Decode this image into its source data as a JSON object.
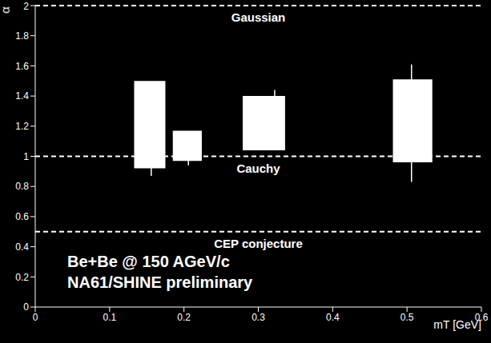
{
  "chart_data": {
    "type": "error_box",
    "x_label": "mT [GeV]",
    "y_label": "α",
    "xlim": [
      0,
      0.6
    ],
    "xticks": [
      0,
      0.1,
      0.2,
      0.3,
      0.4,
      0.5,
      0.6
    ],
    "ylim": [
      0,
      2
    ],
    "yticks": [
      0,
      0.2,
      0.4,
      0.6,
      0.8,
      1,
      1.2,
      1.4,
      1.6,
      1.8,
      2
    ],
    "grid": false,
    "color": "#ffffff",
    "points": [
      {
        "x": 0.156,
        "box_x": [
          0.133,
          0.175
        ],
        "sys": [
          0.92,
          1.5
        ],
        "stat": [
          0.87,
          1.05
        ]
      },
      {
        "x": 0.206,
        "box_x": [
          0.185,
          0.224
        ],
        "sys": [
          0.97,
          1.17
        ],
        "stat": [
          0.94,
          1.0
        ]
      },
      {
        "x": 0.322,
        "box_x": [
          0.279,
          0.336
        ],
        "sys": [
          1.04,
          1.4
        ],
        "stat": [
          1.3,
          1.44
        ]
      },
      {
        "x": 0.506,
        "box_x": [
          0.481,
          0.534
        ],
        "sys": [
          0.96,
          1.51
        ],
        "stat": [
          0.83,
          1.61
        ]
      }
    ],
    "reference_lines": [
      {
        "y": 2,
        "label": "Gaussian"
      },
      {
        "y": 1,
        "label": "Cauchy"
      },
      {
        "y": 0.5,
        "label": "CEP conjecture"
      }
    ],
    "annotations": [
      "Be+Be @ 150 AGeV/c",
      "NA61/SHINE preliminary"
    ]
  }
}
